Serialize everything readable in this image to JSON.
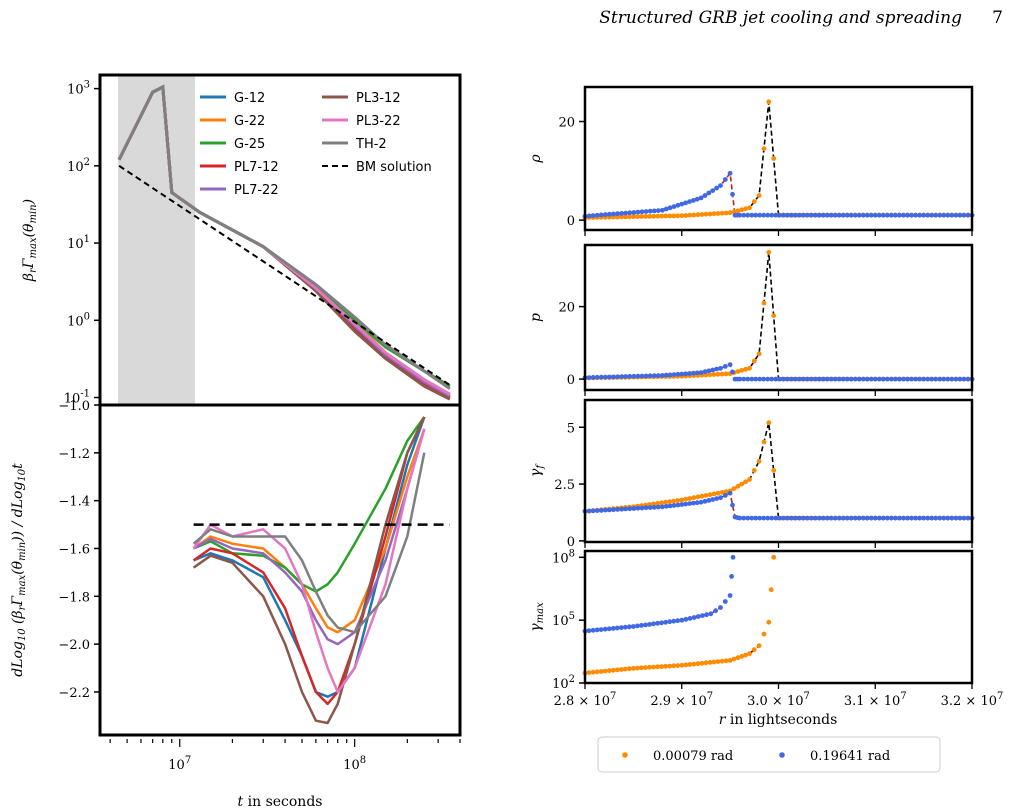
{
  "header": {
    "title": "Structured GRB jet cooling and spreading",
    "page_number": "7"
  },
  "colors": {
    "G-12": "#1f77b4",
    "G-22": "#ff7f0e",
    "G-25": "#2ca02c",
    "PL7-12": "#d62728",
    "PL7-22": "#9467bd",
    "PL3-12": "#8c564b",
    "PL3-22": "#e377c2",
    "TH-2": "#7f7f7f",
    "BM": "#000000",
    "small_angle": "#ff8c00",
    "large_angle": "#4169e1",
    "dashed_red": "#b22222"
  },
  "chart_data": [
    {
      "type": "line",
      "panel": "left-top",
      "ylabel": "β_r Γ_max(θ_min)",
      "yscale": "log",
      "xscale": "log",
      "xlim": [
        3500000.0,
        400000000.0
      ],
      "ylim": [
        0.08,
        1500
      ],
      "yticks": [
        "10^3",
        "10^2",
        "10^1",
        "10^0",
        "10^-1"
      ],
      "shaded_region": [
        4400000.0,
        12000000.0
      ],
      "legend": [
        "G-12",
        "G-22",
        "G-25",
        "PL7-12",
        "PL7-22",
        "PL3-12",
        "PL3-22",
        "TH-2",
        "BM solution"
      ],
      "series": [
        {
          "name": "G-12",
          "x": [
            4500000.0,
            7000000.0,
            8000000.0,
            9000000.0,
            13000000.0,
            30000000.0,
            60000000.0,
            100000000.0,
            150000000.0,
            250000000.0,
            350000000.0
          ],
          "y": [
            120,
            900,
            1050,
            45,
            25,
            9,
            2.6,
            0.8,
            0.33,
            0.15,
            0.1
          ]
        },
        {
          "name": "G-22",
          "x": [
            4500000.0,
            7000000.0,
            8000000.0,
            9000000.0,
            13000000.0,
            30000000.0,
            60000000.0,
            100000000.0,
            150000000.0,
            250000000.0,
            350000000.0
          ],
          "y": [
            120,
            900,
            1050,
            45,
            25,
            9,
            2.7,
            0.95,
            0.38,
            0.17,
            0.11
          ]
        },
        {
          "name": "G-25",
          "x": [
            4500000.0,
            7000000.0,
            8000000.0,
            9000000.0,
            13000000.0,
            30000000.0,
            60000000.0,
            100000000.0,
            150000000.0,
            250000000.0,
            350000000.0
          ],
          "y": [
            120,
            900,
            1050,
            45,
            25,
            9,
            2.8,
            1.0,
            0.45,
            0.22,
            0.14
          ]
        },
        {
          "name": "PL7-12",
          "x": [
            4500000.0,
            7000000.0,
            8000000.0,
            9000000.0,
            13000000.0,
            30000000.0,
            60000000.0,
            100000000.0,
            150000000.0,
            250000000.0,
            350000000.0
          ],
          "y": [
            120,
            900,
            1050,
            45,
            25,
            9,
            2.5,
            0.75,
            0.33,
            0.15,
            0.1
          ]
        },
        {
          "name": "PL7-22",
          "x": [
            4500000.0,
            7000000.0,
            8000000.0,
            9000000.0,
            13000000.0,
            30000000.0,
            60000000.0,
            100000000.0,
            150000000.0,
            250000000.0,
            350000000.0
          ],
          "y": [
            120,
            900,
            1050,
            45,
            25,
            9,
            2.6,
            0.85,
            0.36,
            0.16,
            0.105
          ]
        },
        {
          "name": "PL3-12",
          "x": [
            4500000.0,
            7000000.0,
            8000000.0,
            9000000.0,
            13000000.0,
            30000000.0,
            60000000.0,
            100000000.0,
            150000000.0,
            250000000.0,
            350000000.0
          ],
          "y": [
            120,
            900,
            1050,
            45,
            25,
            9,
            2.4,
            0.72,
            0.32,
            0.14,
            0.095
          ]
        },
        {
          "name": "PL3-22",
          "x": [
            4500000.0,
            7000000.0,
            8000000.0,
            9000000.0,
            13000000.0,
            30000000.0,
            60000000.0,
            100000000.0,
            150000000.0,
            250000000.0,
            350000000.0
          ],
          "y": [
            120,
            900,
            1050,
            45,
            25,
            9,
            2.6,
            0.9,
            0.38,
            0.17,
            0.11
          ]
        },
        {
          "name": "TH-2",
          "x": [
            4500000.0,
            7000000.0,
            8000000.0,
            9000000.0,
            13000000.0,
            30000000.0,
            60000000.0,
            100000000.0,
            150000000.0,
            250000000.0,
            350000000.0
          ],
          "y": [
            120,
            900,
            1050,
            45,
            25,
            9,
            2.9,
            1.1,
            0.48,
            0.22,
            0.13
          ]
        },
        {
          "name": "BM solution",
          "dashed": true,
          "x": [
            4500000.0,
            350000000.0
          ],
          "y": [
            100,
            0.145
          ]
        }
      ]
    },
    {
      "type": "line",
      "panel": "left-bottom",
      "xlabel": "t in seconds",
      "ylabel": "dLog10(β_r Γ_max(θ_min)) / dLog10 t",
      "xscale": "log",
      "xlim": [
        3500000.0,
        400000000.0
      ],
      "ylim": [
        -2.38,
        -1.0
      ],
      "yticks": [
        -1.0,
        -1.2,
        -1.4,
        -1.6,
        -1.8,
        -2.0,
        -2.2
      ],
      "xticks": [
        "10^7",
        "10^8"
      ],
      "reference_line": -1.5,
      "series": [
        {
          "name": "G-12",
          "x": [
            12000000.0,
            15000000.0,
            20000000.0,
            30000000.0,
            40000000.0,
            50000000.0,
            60000000.0,
            70000000.0,
            80000000.0,
            100000000.0,
            150000000.0,
            200000000.0,
            250000000.0
          ],
          "y": [
            -1.65,
            -1.62,
            -1.65,
            -1.72,
            -1.9,
            -2.05,
            -2.2,
            -2.22,
            -2.2,
            -2.1,
            -1.6,
            -1.25,
            -1.05
          ]
        },
        {
          "name": "G-22",
          "x": [
            12000000.0,
            15000000.0,
            20000000.0,
            30000000.0,
            40000000.0,
            50000000.0,
            60000000.0,
            70000000.0,
            80000000.0,
            100000000.0,
            150000000.0,
            200000000.0,
            250000000.0
          ],
          "y": [
            -1.6,
            -1.55,
            -1.58,
            -1.6,
            -1.68,
            -1.75,
            -1.85,
            -1.93,
            -1.95,
            -1.9,
            -1.6,
            -1.3,
            -1.1
          ]
        },
        {
          "name": "G-25",
          "x": [
            12000000.0,
            15000000.0,
            20000000.0,
            30000000.0,
            40000000.0,
            50000000.0,
            60000000.0,
            70000000.0,
            80000000.0,
            100000000.0,
            150000000.0,
            200000000.0,
            250000000.0
          ],
          "y": [
            -1.6,
            -1.57,
            -1.62,
            -1.63,
            -1.68,
            -1.75,
            -1.78,
            -1.75,
            -1.7,
            -1.58,
            -1.35,
            -1.15,
            -1.05
          ]
        },
        {
          "name": "PL7-12",
          "x": [
            12000000.0,
            15000000.0,
            20000000.0,
            30000000.0,
            40000000.0,
            50000000.0,
            60000000.0,
            70000000.0,
            80000000.0,
            100000000.0,
            150000000.0,
            200000000.0,
            250000000.0
          ],
          "y": [
            -1.65,
            -1.6,
            -1.62,
            -1.7,
            -1.85,
            -2.05,
            -2.2,
            -2.25,
            -2.2,
            -2.0,
            -1.55,
            -1.2,
            -1.05
          ]
        },
        {
          "name": "PL7-22",
          "x": [
            12000000.0,
            15000000.0,
            20000000.0,
            30000000.0,
            40000000.0,
            50000000.0,
            60000000.0,
            70000000.0,
            80000000.0,
            100000000.0,
            150000000.0,
            200000000.0,
            250000000.0
          ],
          "y": [
            -1.6,
            -1.56,
            -1.6,
            -1.62,
            -1.7,
            -1.78,
            -1.9,
            -1.98,
            -2.0,
            -1.95,
            -1.65,
            -1.35,
            -1.1
          ]
        },
        {
          "name": "PL3-12",
          "x": [
            12000000.0,
            15000000.0,
            20000000.0,
            30000000.0,
            40000000.0,
            50000000.0,
            60000000.0,
            70000000.0,
            80000000.0,
            100000000.0,
            150000000.0,
            200000000.0,
            250000000.0
          ],
          "y": [
            -1.68,
            -1.63,
            -1.66,
            -1.8,
            -2.0,
            -2.2,
            -2.32,
            -2.33,
            -2.25,
            -2.0,
            -1.5,
            -1.2,
            -1.05
          ]
        },
        {
          "name": "PL3-22",
          "x": [
            12000000.0,
            15000000.0,
            20000000.0,
            30000000.0,
            40000000.0,
            50000000.0,
            60000000.0,
            70000000.0,
            80000000.0,
            100000000.0,
            150000000.0,
            200000000.0,
            250000000.0
          ],
          "y": [
            -1.6,
            -1.5,
            -1.55,
            -1.52,
            -1.6,
            -1.75,
            -1.95,
            -2.1,
            -2.2,
            -2.1,
            -1.75,
            -1.35,
            -1.1
          ]
        },
        {
          "name": "TH-2",
          "x": [
            12000000.0,
            15000000.0,
            20000000.0,
            30000000.0,
            40000000.0,
            50000000.0,
            60000000.0,
            70000000.0,
            80000000.0,
            100000000.0,
            150000000.0,
            200000000.0,
            250000000.0
          ],
          "y": [
            -1.58,
            -1.52,
            -1.55,
            -1.55,
            -1.55,
            -1.65,
            -1.78,
            -1.88,
            -1.93,
            -1.95,
            -1.8,
            -1.55,
            -1.2
          ]
        },
        {
          "name": "BM solution",
          "dashed": true,
          "x": [
            12000000.0,
            350000000.0
          ],
          "y": [
            -1.5,
            -1.5
          ]
        }
      ]
    },
    {
      "type": "scatter",
      "panel": "right-1",
      "ylabel": "ρ",
      "xlim": [
        28000000.0,
        32000000.0
      ],
      "ylim": [
        -2,
        27
      ],
      "yticks": [
        0,
        20
      ],
      "series": [
        {
          "name": "0.00079 rad",
          "x": [
            28000000.0,
            29000000.0,
            29500000.0,
            29700000.0,
            29800000.0,
            29900000.0,
            30000000.0,
            31000000.0,
            32000000.0
          ],
          "y": [
            0.5,
            0.9,
            1.5,
            2.5,
            5,
            24,
            1,
            1,
            1
          ]
        },
        {
          "name": "0.19641 rad",
          "x": [
            28000000.0,
            28800000.0,
            29200000.0,
            29400000.0,
            29500000.0,
            29550000.0,
            29600000.0,
            31000000.0,
            32000000.0
          ],
          "y": [
            0.8,
            2,
            4.5,
            7,
            9.5,
            1,
            1,
            1,
            1
          ]
        }
      ]
    },
    {
      "type": "scatter",
      "panel": "right-2",
      "ylabel": "p",
      "xlim": [
        28000000.0,
        32000000.0
      ],
      "ylim": [
        -3,
        37
      ],
      "yticks": [
        0,
        20
      ],
      "series": [
        {
          "name": "0.00079 rad",
          "x": [
            28000000.0,
            29000000.0,
            29500000.0,
            29700000.0,
            29800000.0,
            29900000.0,
            30000000.0,
            31000000.0,
            32000000.0
          ],
          "y": [
            0.3,
            0.8,
            1.5,
            3,
            7,
            35,
            0,
            0,
            0
          ]
        },
        {
          "name": "0.19641 rad",
          "x": [
            28000000.0,
            28800000.0,
            29200000.0,
            29400000.0,
            29500000.0,
            29550000.0,
            29600000.0,
            31000000.0,
            32000000.0
          ],
          "y": [
            0.4,
            1,
            1.8,
            3,
            4,
            0,
            0,
            0,
            0
          ]
        }
      ]
    },
    {
      "type": "scatter",
      "panel": "right-3",
      "ylabel": "γ_f",
      "xlim": [
        28000000.0,
        32000000.0
      ],
      "ylim": [
        -0.05,
        6.2
      ],
      "yticks": [
        0.0,
        2.5,
        5.0
      ],
      "series": [
        {
          "name": "0.00079 rad",
          "x": [
            28000000.0,
            28500000.0,
            29000000.0,
            29500000.0,
            29700000.0,
            29800000.0,
            29900000.0,
            30000000.0,
            31000000.0,
            32000000.0
          ],
          "y": [
            1.3,
            1.5,
            1.8,
            2.2,
            2.7,
            3.5,
            5.2,
            1,
            1,
            1
          ]
        },
        {
          "name": "0.19641 rad",
          "x": [
            28000000.0,
            28800000.0,
            29200000.0,
            29400000.0,
            29500000.0,
            29550000.0,
            29600000.0,
            31000000.0,
            32000000.0
          ],
          "y": [
            1.3,
            1.5,
            1.7,
            1.9,
            2.1,
            1.05,
            1,
            1,
            1
          ]
        }
      ]
    },
    {
      "type": "scatter",
      "panel": "right-4",
      "xlabel": "r in lightseconds",
      "ylabel": "γ_max",
      "yscale": "log",
      "xlim": [
        28000000.0,
        32000000.0
      ],
      "ylim": [
        100,
        200000000.0
      ],
      "yticks": [
        "10^8",
        "10^5",
        "10^2"
      ],
      "xticks": [
        "2.8 × 10^7",
        "2.9 × 10^7",
        "3.0 × 10^7",
        "3.1 × 10^7",
        "3.2 × 10^7"
      ],
      "legend": [
        "0.00079 rad",
        "0.19641 rad"
      ],
      "series": [
        {
          "name": "0.00079 rad",
          "x": [
            28000000.0,
            28500000.0,
            29000000.0,
            29500000.0,
            29700000.0,
            29800000.0,
            29900000.0,
            29950000.0
          ],
          "y": [
            300,
            500,
            700,
            1200,
            2500,
            6000,
            80000.0,
            100000000.0
          ]
        },
        {
          "name": "0.19641 rad",
          "x": [
            28000000.0,
            28500000.0,
            29000000.0,
            29300000.0,
            29400000.0,
            29500000.0,
            29530000.0
          ],
          "y": [
            30000.0,
            50000.0,
            100000.0,
            200000.0,
            400000.0,
            1500000.0,
            100000000.0
          ]
        }
      ]
    }
  ]
}
